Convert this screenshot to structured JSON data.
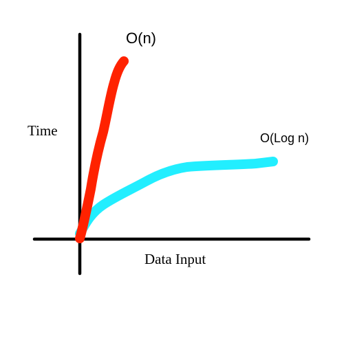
{
  "labels": {
    "y_axis": "Time",
    "x_axis": "Data Input",
    "linear_curve": "O(n)",
    "log_curve": "O(Log n)"
  },
  "colors": {
    "axes": "#000000",
    "linear_curve": "#ff2200",
    "log_curve": "#22eeff"
  }
}
